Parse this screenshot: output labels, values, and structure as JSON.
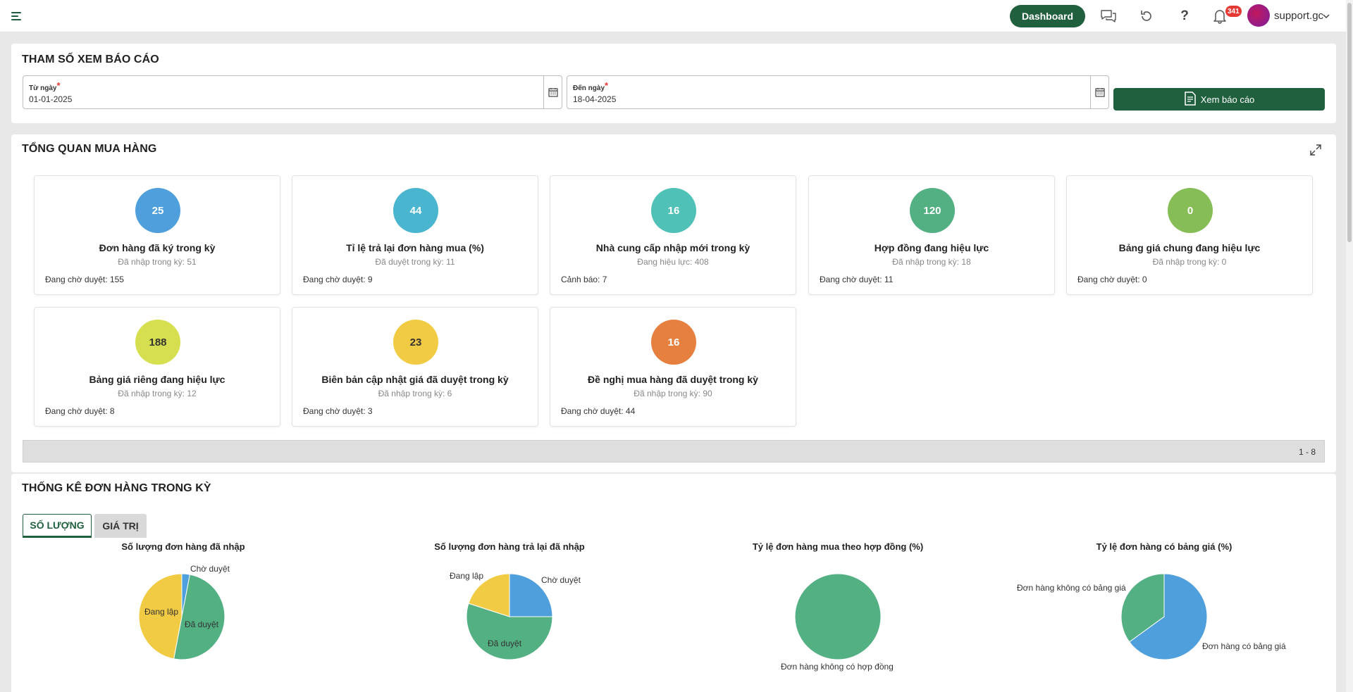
{
  "header": {
    "dashboard_label": "Dashboard",
    "notification_count": "341",
    "user_name": "support.gc"
  },
  "params": {
    "title": "THAM SỐ XEM BÁO CÁO",
    "from_label": "Từ ngày",
    "from_value": "01-01-2025",
    "to_label": "Đến ngày",
    "to_value": "18-04-2025",
    "view_button": "Xem báo cáo"
  },
  "overview": {
    "title": "TỔNG QUAN MUA HÀNG",
    "cards": [
      {
        "value": "25",
        "color": "#4f9fdd",
        "title": "Đơn hàng đã ký trong kỳ",
        "sub": "Đã nhập trong kỳ: 51",
        "foot": "Đang chờ duyệt: 155"
      },
      {
        "value": "44",
        "color": "#4ab5cf",
        "title": "Tỉ lệ trả lại đơn hàng mua (%)",
        "sub": "Đã duyệt trong kỳ: 11",
        "foot": "Đang chờ duyệt: 9"
      },
      {
        "value": "16",
        "color": "#4fc1b6",
        "title": "Nhà cung cấp nhập mới trong kỳ",
        "sub": "Đang hiệu lực: 408",
        "foot": "Cảnh báo: 7"
      },
      {
        "value": "120",
        "color": "#53b083",
        "title": "Hợp đồng đang hiệu lực",
        "sub": "Đã nhập trong kỳ: 18",
        "foot": "Đang chờ duyệt: 11"
      },
      {
        "value": "0",
        "color": "#86bd57",
        "title": "Bảng giá chung đang hiệu lực",
        "sub": "Đã nhập trong kỳ: 0",
        "foot": "Đang chờ duyệt: 0"
      },
      {
        "value": "188",
        "color": "#d6df4f",
        "title": "Bảng giá riêng đang hiệu lực",
        "sub": "Đã nhập trong kỳ: 12",
        "foot": "Đang chờ duyệt: 8"
      },
      {
        "value": "23",
        "color": "#f2cb44",
        "title": "Biên bản cập nhật giá đã duyệt trong kỳ",
        "sub": "Đã nhập trong kỳ: 6",
        "foot": "Đang chờ duyệt: 3"
      },
      {
        "value": "16",
        "color": "#e5803f",
        "title": "Đề nghị mua hàng đã duyệt trong kỳ",
        "sub": "Đã nhập trong kỳ: 90",
        "foot": "Đang chờ duyệt: 44"
      }
    ],
    "pager_text": "1 - 8"
  },
  "stats": {
    "title": "THỐNG KÊ ĐƠN HÀNG TRONG KỲ",
    "tabs": [
      "SỐ LƯỢNG",
      "GIÁ TRỊ"
    ]
  },
  "colors": {
    "brand_green": "#21603f",
    "pie_blue": "#4f9fdd",
    "pie_green": "#53b083",
    "pie_yellow": "#f2cb44"
  },
  "chart_data": [
    {
      "type": "pie",
      "title": "Số lượng đơn hàng đã nhập",
      "series": [
        {
          "name": "Chờ duyệt",
          "value": 3,
          "color": "#4f9fdd"
        },
        {
          "name": "Đã duyệt",
          "value": 50,
          "color": "#53b083"
        },
        {
          "name": "Đang lập",
          "value": 47,
          "color": "#f2cb44"
        }
      ]
    },
    {
      "type": "pie",
      "title": "Số lượng đơn hàng trả lại đã nhập",
      "series": [
        {
          "name": "Chờ duyệt",
          "value": 25,
          "color": "#4f9fdd"
        },
        {
          "name": "Đã duyệt",
          "value": 55,
          "color": "#53b083"
        },
        {
          "name": "Đang lập",
          "value": 20,
          "color": "#f2cb44"
        }
      ]
    },
    {
      "type": "pie",
      "title": "Tỷ lệ đơn hàng mua theo hợp đồng (%)",
      "series": [
        {
          "name": "Đơn hàng không có hợp đồng",
          "value": 100,
          "color": "#53b083"
        }
      ]
    },
    {
      "type": "pie",
      "title": "Tỷ lệ đơn hàng có bảng giá (%)",
      "series": [
        {
          "name": "Đơn hàng có bảng giá",
          "value": 65,
          "color": "#4f9fdd"
        },
        {
          "name": "Đơn hàng không có bảng giá",
          "value": 35,
          "color": "#53b083"
        }
      ]
    }
  ]
}
